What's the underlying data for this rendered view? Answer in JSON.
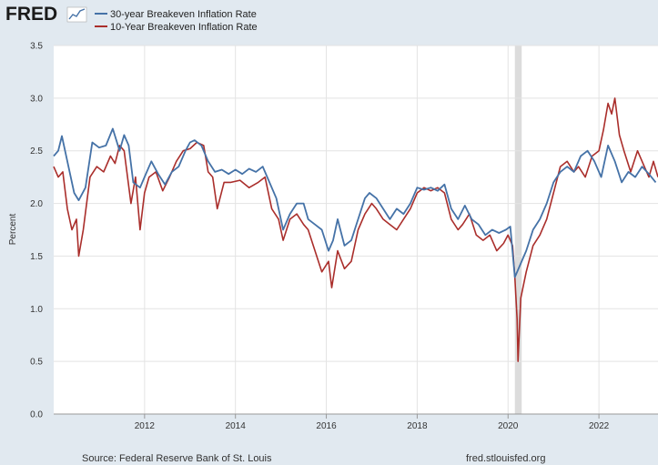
{
  "brand": {
    "logo_text": "FRED"
  },
  "legend": [
    {
      "name": "30-year Breakeven Inflation Rate",
      "color": "#4572a7"
    },
    {
      "name": "10-Year Breakeven Inflation Rate",
      "color": "#aa2e2b"
    }
  ],
  "footer": {
    "source": "Source: Federal Reserve Bank of St. Louis",
    "site": "fred.stlouisfed.org"
  },
  "chart_data": {
    "type": "line",
    "ylabel": "Percent",
    "ylim": [
      0,
      3.5
    ],
    "yticks": [
      "0.0",
      "0.5",
      "1.0",
      "1.5",
      "2.0",
      "2.5",
      "3.0",
      "3.5"
    ],
    "xlim": [
      2010.0,
      2023.3
    ],
    "xticks": [
      "2012",
      "2014",
      "2016",
      "2018",
      "2020",
      "2022"
    ],
    "grid": true,
    "recession_shading": [
      2020.15,
      2020.3
    ],
    "series": [
      {
        "name": "30-year Breakeven Inflation Rate",
        "color": "#4572a7",
        "x": [
          2010.0,
          2010.1,
          2010.18,
          2010.3,
          2010.45,
          2010.55,
          2010.7,
          2010.85,
          2011.0,
          2011.15,
          2011.3,
          2011.45,
          2011.55,
          2011.65,
          2011.75,
          2011.9,
          2012.0,
          2012.15,
          2012.3,
          2012.45,
          2012.6,
          2012.75,
          2012.9,
          2013.0,
          2013.1,
          2013.25,
          2013.4,
          2013.55,
          2013.7,
          2013.85,
          2014.0,
          2014.15,
          2014.3,
          2014.45,
          2014.6,
          2014.75,
          2014.9,
          2015.05,
          2015.2,
          2015.35,
          2015.5,
          2015.6,
          2015.75,
          2015.9,
          2016.05,
          2016.15,
          2016.25,
          2016.4,
          2016.55,
          2016.7,
          2016.85,
          2016.95,
          2017.1,
          2017.25,
          2017.4,
          2017.55,
          2017.7,
          2017.85,
          2018.0,
          2018.15,
          2018.3,
          2018.45,
          2018.6,
          2018.75,
          2018.9,
          2019.05,
          2019.2,
          2019.35,
          2019.5,
          2019.65,
          2019.8,
          2019.95,
          2020.05,
          2020.15,
          2020.25,
          2020.4,
          2020.55,
          2020.7,
          2020.85,
          2021.0,
          2021.15,
          2021.3,
          2021.45,
          2021.6,
          2021.75,
          2021.9,
          2022.05,
          2022.2,
          2022.35,
          2022.5,
          2022.65,
          2022.8,
          2022.95,
          2023.1,
          2023.25
        ],
        "values": [
          2.45,
          2.5,
          2.64,
          2.4,
          2.1,
          2.03,
          2.15,
          2.58,
          2.53,
          2.55,
          2.71,
          2.5,
          2.65,
          2.55,
          2.2,
          2.15,
          2.25,
          2.4,
          2.28,
          2.18,
          2.3,
          2.35,
          2.5,
          2.58,
          2.6,
          2.55,
          2.4,
          2.3,
          2.32,
          2.28,
          2.32,
          2.28,
          2.33,
          2.3,
          2.35,
          2.2,
          2.05,
          1.75,
          1.9,
          2.0,
          2.0,
          1.85,
          1.8,
          1.75,
          1.55,
          1.65,
          1.85,
          1.6,
          1.65,
          1.85,
          2.05,
          2.1,
          2.05,
          1.95,
          1.85,
          1.95,
          1.9,
          2.0,
          2.15,
          2.13,
          2.15,
          2.12,
          2.18,
          1.95,
          1.85,
          1.98,
          1.85,
          1.8,
          1.7,
          1.75,
          1.72,
          1.75,
          1.78,
          1.3,
          1.4,
          1.55,
          1.75,
          1.85,
          2.0,
          2.2,
          2.3,
          2.35,
          2.3,
          2.45,
          2.5,
          2.4,
          2.25,
          2.55,
          2.4,
          2.2,
          2.3,
          2.25,
          2.35,
          2.28,
          2.2
        ]
      },
      {
        "name": "10-Year Breakeven Inflation Rate",
        "color": "#aa2e2b",
        "x": [
          2010.0,
          2010.1,
          2010.2,
          2010.3,
          2010.4,
          2010.5,
          2010.55,
          2010.65,
          2010.8,
          2010.95,
          2011.1,
          2011.25,
          2011.35,
          2011.45,
          2011.55,
          2011.7,
          2011.8,
          2011.9,
          2012.0,
          2012.1,
          2012.25,
          2012.4,
          2012.55,
          2012.7,
          2012.85,
          2013.0,
          2013.15,
          2013.3,
          2013.4,
          2013.5,
          2013.6,
          2013.75,
          2013.9,
          2014.1,
          2014.3,
          2014.5,
          2014.65,
          2014.8,
          2014.95,
          2015.05,
          2015.2,
          2015.35,
          2015.5,
          2015.6,
          2015.75,
          2015.9,
          2016.05,
          2016.12,
          2016.25,
          2016.4,
          2016.55,
          2016.7,
          2016.85,
          2017.0,
          2017.1,
          2017.25,
          2017.4,
          2017.55,
          2017.7,
          2017.85,
          2018.0,
          2018.15,
          2018.3,
          2018.45,
          2018.6,
          2018.75,
          2018.9,
          2019.0,
          2019.15,
          2019.3,
          2019.45,
          2019.6,
          2019.75,
          2019.9,
          2020.0,
          2020.1,
          2020.15,
          2020.2,
          2020.22,
          2020.28,
          2020.4,
          2020.55,
          2020.7,
          2020.85,
          2021.0,
          2021.15,
          2021.3,
          2021.45,
          2021.55,
          2021.7,
          2021.85,
          2022.0,
          2022.1,
          2022.2,
          2022.28,
          2022.35,
          2022.45,
          2022.55,
          2022.7,
          2022.85,
          2023.0,
          2023.1,
          2023.2,
          2023.3
        ],
        "values": [
          2.35,
          2.25,
          2.3,
          1.95,
          1.75,
          1.85,
          1.5,
          1.75,
          2.25,
          2.35,
          2.3,
          2.45,
          2.38,
          2.55,
          2.5,
          2.0,
          2.25,
          1.75,
          2.1,
          2.25,
          2.3,
          2.12,
          2.25,
          2.4,
          2.5,
          2.52,
          2.58,
          2.55,
          2.3,
          2.25,
          1.95,
          2.2,
          2.2,
          2.22,
          2.15,
          2.2,
          2.25,
          1.95,
          1.85,
          1.65,
          1.85,
          1.9,
          1.8,
          1.75,
          1.55,
          1.35,
          1.45,
          1.2,
          1.55,
          1.38,
          1.45,
          1.75,
          1.9,
          2.0,
          1.95,
          1.85,
          1.8,
          1.75,
          1.85,
          1.95,
          2.1,
          2.15,
          2.12,
          2.15,
          2.1,
          1.85,
          1.75,
          1.8,
          1.9,
          1.7,
          1.65,
          1.7,
          1.55,
          1.62,
          1.7,
          1.6,
          1.3,
          0.9,
          0.5,
          1.1,
          1.35,
          1.6,
          1.7,
          1.85,
          2.1,
          2.35,
          2.4,
          2.3,
          2.35,
          2.25,
          2.45,
          2.5,
          2.7,
          2.95,
          2.85,
          3.0,
          2.65,
          2.5,
          2.3,
          2.5,
          2.35,
          2.25,
          2.4,
          2.25
        ]
      }
    ]
  }
}
